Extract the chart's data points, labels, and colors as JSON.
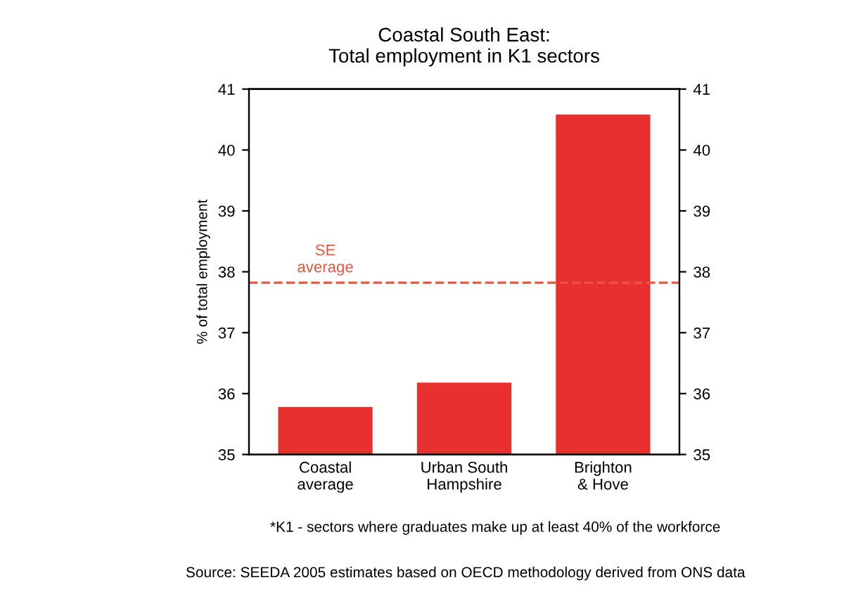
{
  "chart_data": {
    "type": "bar",
    "title": "Coastal South East:\nTotal employment in K1 sectors",
    "ylabel": "% of total employment",
    "categories": [
      "Coastal\naverage",
      "Urban South\nHampshire",
      "Brighton\n& Hove"
    ],
    "values": [
      35.78,
      36.18,
      40.58
    ],
    "color": "#e8312e",
    "ylim": [
      35,
      41
    ],
    "yticks": [
      35,
      36,
      37,
      38,
      39,
      40,
      41
    ],
    "y2lim": [
      35,
      41
    ],
    "y2ticks": [
      35,
      36,
      37,
      38,
      39,
      40,
      41
    ],
    "ref_lines": [
      {
        "axis": "y",
        "value": 37.82,
        "label": "SE\naverage",
        "color": "#e8553f",
        "line_style": "dashed"
      }
    ],
    "grid": false,
    "legend": false,
    "annotations": [
      "*K1 - sectors where graduates make up at least 40% of the workforce",
      "Source: SEEDA 2005 estimates based on OECD methodology derived from ONS data"
    ]
  }
}
